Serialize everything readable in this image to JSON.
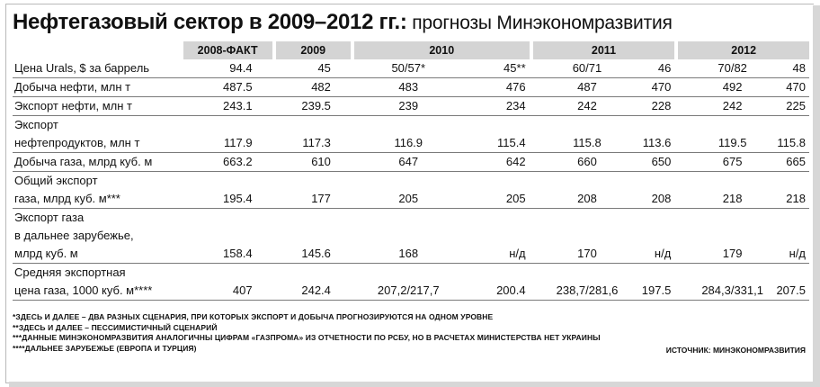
{
  "title": {
    "bold": "Нефтегазовый сектор в 2009–2012 гг.:",
    "light": " прогнозы Минэкономразвития"
  },
  "headers": [
    "2008-ФАКТ",
    "2009",
    "2010",
    "2011",
    "2012"
  ],
  "rows": [
    {
      "label": [
        "Цена Urals, $ за баррель"
      ],
      "v2008": "94.4",
      "v2009": "45",
      "v2010a": "50/57*",
      "v2010b": "45**",
      "v2011a": "60/71",
      "v2011b": "46",
      "v2012a": "70/82",
      "v2012b": "48"
    },
    {
      "label": [
        "Добыча нефти, млн т"
      ],
      "v2008": "487.5",
      "v2009": "482",
      "v2010a": "483",
      "v2010b": "476",
      "v2011a": "487",
      "v2011b": "470",
      "v2012a": "492",
      "v2012b": "470"
    },
    {
      "label": [
        "Экспорт нефти, млн т"
      ],
      "v2008": "243.1",
      "v2009": "239.5",
      "v2010a": "239",
      "v2010b": "234",
      "v2011a": "242",
      "v2011b": "228",
      "v2012a": "242",
      "v2012b": "225"
    },
    {
      "label": [
        "Экспорт",
        "нефтепродуктов, млн т"
      ],
      "v2008": "117.9",
      "v2009": "117.3",
      "v2010a": "116.9",
      "v2010b": "115.4",
      "v2011a": "115.8",
      "v2011b": "113.6",
      "v2012a": "119.5",
      "v2012b": "115.8"
    },
    {
      "label": [
        "Добыча газа, млрд куб. м"
      ],
      "v2008": "663.2",
      "v2009": "610",
      "v2010a": "647",
      "v2010b": "642",
      "v2011a": "660",
      "v2011b": "650",
      "v2012a": "675",
      "v2012b": "665"
    },
    {
      "label": [
        "Общий экспорт",
        "газа, млрд куб. м***"
      ],
      "v2008": "195.4",
      "v2009": "177",
      "v2010a": "205",
      "v2010b": "205",
      "v2011a": "208",
      "v2011b": "208",
      "v2012a": "218",
      "v2012b": "218"
    },
    {
      "label": [
        "Экспорт газа",
        "в дальнее зарубежье,",
        "млрд куб. м"
      ],
      "v2008": "158.4",
      "v2009": "145.6",
      "v2010a": "168",
      "v2010b": "н/д",
      "v2011a": "170",
      "v2011b": "н/д",
      "v2012a": "179",
      "v2012b": "н/д"
    },
    {
      "label": [
        "Средняя экспортная",
        "цена газа, 1000 куб. м****"
      ],
      "v2008": "407",
      "v2009": "242.4",
      "v2010a": "207,2/217,7",
      "v2010b": "200.4",
      "v2011a": "238,7/281,6",
      "v2011b": "197.5",
      "v2012a": "284,3/331,1",
      "v2012b": "207.5"
    }
  ],
  "notes": [
    "*ЗДЕСЬ И ДАЛЕЕ – ДВА РАЗНЫХ СЦЕНАРИЯ, ПРИ КОТОРЫХ ЭКСПОРТ И ДОБЫЧА ПРОГНОЗИРУЮТСЯ НА ОДНОМ УРОВНЕ",
    "**ЗДЕСЬ И ДАЛЕЕ – ПЕССИМИСТИЧНЫЙ СЦЕНАРИЙ",
    "***ДАННЫЕ МИНЭКОНОМРАЗВИТИЯ АНАЛОГИЧНЫ ЦИФРАМ «ГАЗПРОМА» ИЗ ОТЧЕТНОСТИ ПО РСБУ, НО В РАСЧЕТАХ МИНИСТЕРСТВА НЕТ УКРАИНЫ",
    "****ДАЛЬНЕЕ ЗАРУБЕЖЬЕ (ЕВРОПА И ТУРЦИЯ)"
  ],
  "source": "ИСТОЧНИК: МИНЭКОНОМРАЗВИТИЯ"
}
